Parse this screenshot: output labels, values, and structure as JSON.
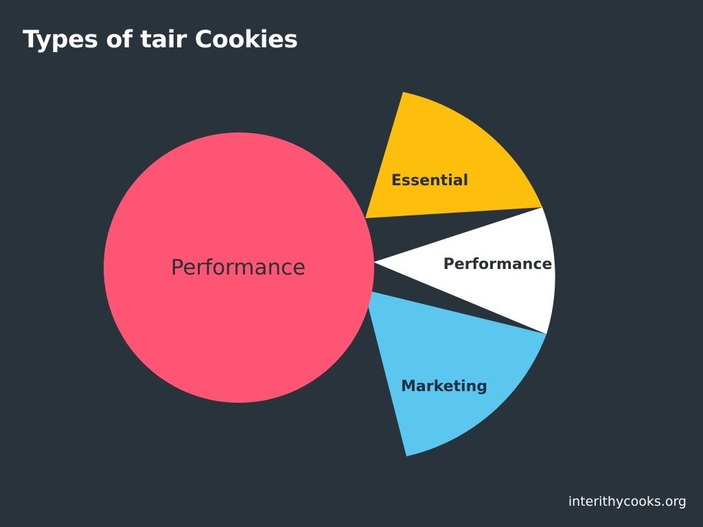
{
  "page": {
    "title": "Types of tair Cookies",
    "footer": "interithycooks.org"
  },
  "chart_data": {
    "type": "pie",
    "title": "Types of tair Cookies",
    "slices": [
      {
        "label": "Performance",
        "color": "#fd5573",
        "label_color": "#2b2f36",
        "label_weight": "normal",
        "exploded": true
      },
      {
        "label": "Essential",
        "color": "#fdbe0c",
        "label_color": "#2b2f36",
        "label_weight": "bold",
        "exploded": false
      },
      {
        "label": "Performance",
        "color": "#ffffff",
        "label_color": "#2b2f36",
        "label_weight": "bold",
        "exploded": false
      },
      {
        "label": "Marketing",
        "color": "#5bc7ef",
        "label_color": "#1f3141",
        "label_weight": "bold",
        "exploded": false
      }
    ]
  }
}
